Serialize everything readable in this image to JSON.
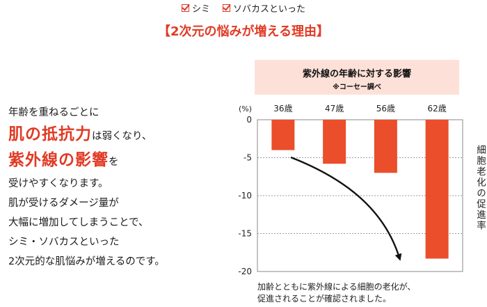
{
  "checks": [
    "シミ",
    "ソバカスといった"
  ],
  "headline": "【2次元の悩みが増える理由】",
  "body": {
    "line1": "年齢を重ねるごとに",
    "emph1": "肌の抵抗力",
    "suffix1": "は弱くなり、",
    "emph2": "紫外線の影響",
    "suffix2": "を",
    "line4": "受けやすくなります。",
    "line5": "肌が受けるダメージ量が",
    "line6": "大幅に増加してしまうことで、",
    "line7": "シミ・ソバカスといった",
    "line8": "2次元的な肌悩みが増えるのです。"
  },
  "chart_header": {
    "title": "紫外線の年齢に対する影響",
    "subtitle": "※コーセー調べ"
  },
  "chart_data": {
    "type": "bar",
    "title": "紫外線の年齢に対する影響",
    "subtitle": "※コーセー調べ",
    "categories": [
      "36歳",
      "47歳",
      "56歳",
      "62歳"
    ],
    "values": [
      -4,
      -5.8,
      -7,
      -18.3
    ],
    "ylabel": "細胞老化の促進率",
    "yunit": "(%)",
    "ylim": [
      -20,
      0
    ],
    "yticks": [
      0,
      -5,
      -10,
      -15,
      -20
    ],
    "grid": true,
    "bar_color": "#ea4e2b",
    "annotation": "downward trend arrow"
  },
  "side_label": "細胞老化の促進率",
  "caption": {
    "line1": "加齢とともに紫外線による細胞の老化が、",
    "line2": "促進されることが確認されました。"
  },
  "colors": {
    "accent": "#e03a24",
    "bar": "#ea4e2b",
    "header_bg": "#fde1d8"
  }
}
